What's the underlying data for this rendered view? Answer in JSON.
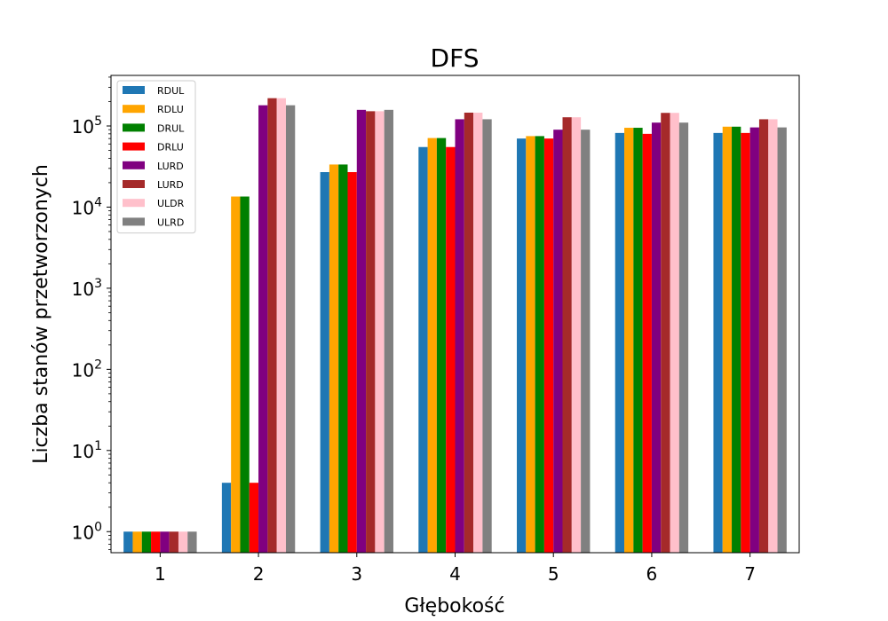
{
  "chart_data": {
    "type": "bar",
    "title": "DFS",
    "xlabel": "Głębokość",
    "ylabel": "Liczba stanów przetworzonych",
    "yscale": "log",
    "ylim": [
      0.55,
      420000
    ],
    "categories": [
      "1",
      "2",
      "3",
      "4",
      "5",
      "6",
      "7"
    ],
    "grid": false,
    "legend_position": "top-left",
    "series": [
      {
        "name": "RDUL",
        "color": "#1f77b4",
        "values": [
          1,
          4,
          27000,
          55000,
          70000,
          82000,
          82000
        ]
      },
      {
        "name": "RDLU",
        "color": "#ffa500",
        "values": [
          1,
          13500,
          33500,
          71000,
          75000,
          95000,
          98000
        ]
      },
      {
        "name": "DRUL",
        "color": "#008000",
        "values": [
          1,
          13500,
          33500,
          71000,
          75000,
          95000,
          98000
        ]
      },
      {
        "name": "DRLU",
        "color": "#ff0000",
        "values": [
          1,
          4,
          27000,
          55000,
          70000,
          80000,
          82000
        ]
      },
      {
        "name": "LURD",
        "color": "#800080",
        "values": [
          1,
          180000,
          158000,
          121000,
          90000,
          110000,
          96000
        ]
      },
      {
        "name": "LURD",
        "color": "#a52a2a",
        "values": [
          1,
          220000,
          152000,
          146000,
          128000,
          145000,
          121000
        ]
      },
      {
        "name": "ULDR",
        "color": "#ffc0cb",
        "values": [
          1,
          220000,
          152000,
          146000,
          128000,
          145000,
          121000
        ]
      },
      {
        "name": "ULRD",
        "color": "#808080",
        "values": [
          1,
          180000,
          158000,
          121000,
          90000,
          110000,
          96000
        ]
      }
    ],
    "y_ticks": [
      {
        "base": "10",
        "exp": "0",
        "value": 1
      },
      {
        "base": "10",
        "exp": "1",
        "value": 10
      },
      {
        "base": "10",
        "exp": "2",
        "value": 100
      },
      {
        "base": "10",
        "exp": "3",
        "value": 1000
      },
      {
        "base": "10",
        "exp": "4",
        "value": 10000
      },
      {
        "base": "10",
        "exp": "5",
        "value": 100000
      }
    ]
  }
}
